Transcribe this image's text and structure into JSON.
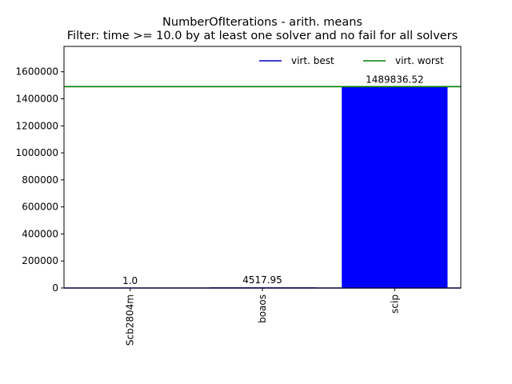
{
  "chart_data": {
    "type": "bar",
    "title": "NumberOfIterations - arith. means",
    "subtitle": "Filter: time >= 10.0 by at least one solver and no fail for all solvers",
    "categories": [
      "Scb2804m",
      "boaos",
      "scip"
    ],
    "values": [
      1.0,
      4517.95,
      1489836.52
    ],
    "data_labels": [
      "1.0",
      "4517.95",
      "1489836.52"
    ],
    "ylim": [
      0,
      1787803.82
    ],
    "yticks": [
      0,
      200000,
      400000,
      600000,
      800000,
      1000000,
      1200000,
      1400000,
      1600000
    ],
    "ytick_labels": [
      "0",
      "200000",
      "400000",
      "600000",
      "800000",
      "1000000",
      "1200000",
      "1400000",
      "1600000"
    ],
    "bar_color": "#0000ff",
    "reference_lines": [
      {
        "name": "virt. best",
        "value": 1.0,
        "color": "#0000bf"
      },
      {
        "name": "virt. worst",
        "value": 1489836.52,
        "color": "#008000"
      }
    ],
    "legend": {
      "placement": "top-right",
      "entries": [
        "virt. best",
        "virt. worst"
      ]
    },
    "grid": false,
    "xtick_rotation": "vertical"
  }
}
